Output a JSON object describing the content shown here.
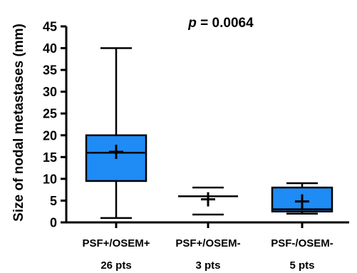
{
  "chart_data": {
    "type": "box",
    "title_p": "p",
    "title_rest": " = 0.0064",
    "ylabel": "Size of nodal metastases (mm)",
    "xlabel": "",
    "ylim": [
      0,
      45
    ],
    "yticks": [
      0,
      5,
      10,
      15,
      20,
      25,
      30,
      35,
      40,
      45
    ],
    "grid": false,
    "box_color": "#1f8bf5",
    "series": [
      {
        "label": "PSF+/OSEM+",
        "count": "26 pts",
        "min": 1,
        "q1": 9.5,
        "median": 16,
        "q3": 20,
        "max": 40,
        "mean": 16.2,
        "show_box": true
      },
      {
        "label": "PSF+/OSEM-",
        "count": "3 pts",
        "min": 1.8,
        "q1": 1.8,
        "median": 6,
        "q3": 8,
        "max": 8,
        "mean": 5.3,
        "show_box": false
      },
      {
        "label": "PSF-/OSEM-",
        "count": "5 pts",
        "min": 2,
        "q1": 2.5,
        "median": 3,
        "q3": 8,
        "max": 9,
        "mean": 4.8,
        "show_box": true
      }
    ]
  }
}
